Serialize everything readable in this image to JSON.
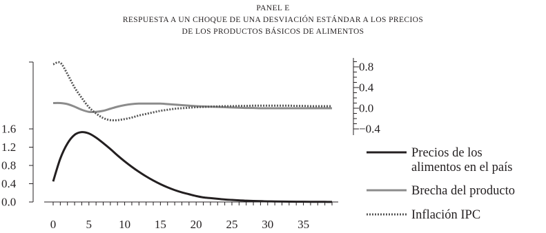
{
  "title": {
    "line1": "PANEL E",
    "line2": "RESPUESTA A UN CHOQUE DE UNA DESVIACIÓN ESTÁNDAR A LOS PRECIOS",
    "line3": "DE LOS PRODUCTOS BÁSICOS DE ALIMENTOS"
  },
  "chart_data": {
    "type": "line",
    "x": [
      0,
      1,
      2,
      3,
      4,
      5,
      6,
      7,
      8,
      9,
      10,
      11,
      12,
      13,
      14,
      15,
      16,
      17,
      18,
      19,
      20,
      21,
      22,
      23,
      24,
      25,
      26,
      27,
      28,
      29,
      30,
      31,
      32,
      33,
      34,
      35,
      36,
      37,
      38,
      39
    ],
    "xticks": [
      "0",
      "5",
      "10",
      "15",
      "20",
      "25",
      "30",
      "35"
    ],
    "xtick_values": [
      0,
      5,
      10,
      15,
      20,
      25,
      30,
      35
    ],
    "xlim": [
      -1.5,
      40
    ],
    "left_axis": {
      "ylim": [
        0,
        1.6
      ],
      "ticks": [
        "0.0",
        "0.4",
        "0.8",
        "1.2",
        "1.6"
      ],
      "tick_values": [
        0,
        0.4,
        0.8,
        1.2,
        1.6
      ]
    },
    "right_axis": {
      "ylim": [
        -0.4,
        0.9
      ],
      "ticks": [
        "0.8",
        "0.4",
        "0.0",
        "−0.4"
      ],
      "tick_values": [
        0.8,
        0.4,
        0.0,
        -0.4
      ]
    },
    "series": [
      {
        "name": "Precios de los alimentos en el país",
        "legend_lines": [
          "Precios de los",
          "alimentos en el país"
        ],
        "axis": "left",
        "style": "solid-dark",
        "color": "#231f20",
        "values": [
          0.45,
          0.95,
          1.28,
          1.47,
          1.53,
          1.5,
          1.41,
          1.29,
          1.16,
          1.02,
          0.89,
          0.77,
          0.66,
          0.56,
          0.47,
          0.39,
          0.32,
          0.26,
          0.21,
          0.17,
          0.13,
          0.1,
          0.085,
          0.07,
          0.055,
          0.045,
          0.035,
          0.028,
          0.022,
          0.018,
          0.014,
          0.011,
          0.009,
          0.007,
          0.006,
          0.005,
          0.004,
          0.003,
          0.003,
          0.002
        ]
      },
      {
        "name": "Brecha del producto",
        "legend_lines": [
          "Brecha del producto"
        ],
        "axis": "right",
        "style": "solid-gray",
        "color": "#8c8c8c",
        "values": [
          0.1,
          0.1,
          0.08,
          0.03,
          -0.03,
          -0.07,
          -0.07,
          -0.05,
          -0.01,
          0.03,
          0.06,
          0.08,
          0.09,
          0.09,
          0.09,
          0.09,
          0.08,
          0.07,
          0.06,
          0.05,
          0.04,
          0.035,
          0.03,
          0.025,
          0.02,
          0.015,
          0.01,
          0.005,
          0.005,
          0.0,
          0.0,
          0.0,
          0.0,
          0.0,
          0.0,
          0.0,
          0.0,
          0.0,
          0.0,
          0.0
        ]
      },
      {
        "name": "Inflación IPC",
        "legend_lines": [
          "Inflación IPC"
        ],
        "axis": "right",
        "style": "dotted",
        "color": "#555555",
        "values": [
          0.85,
          0.88,
          0.66,
          0.4,
          0.2,
          0.02,
          -0.1,
          -0.19,
          -0.23,
          -0.23,
          -0.21,
          -0.18,
          -0.14,
          -0.11,
          -0.08,
          -0.05,
          -0.03,
          -0.01,
          0.0,
          0.01,
          0.02,
          0.025,
          0.03,
          0.035,
          0.04,
          0.04,
          0.045,
          0.045,
          0.05,
          0.05,
          0.05,
          0.05,
          0.05,
          0.05,
          0.045,
          0.045,
          0.04,
          0.04,
          0.04,
          0.04
        ]
      }
    ],
    "legend_position": "right"
  }
}
